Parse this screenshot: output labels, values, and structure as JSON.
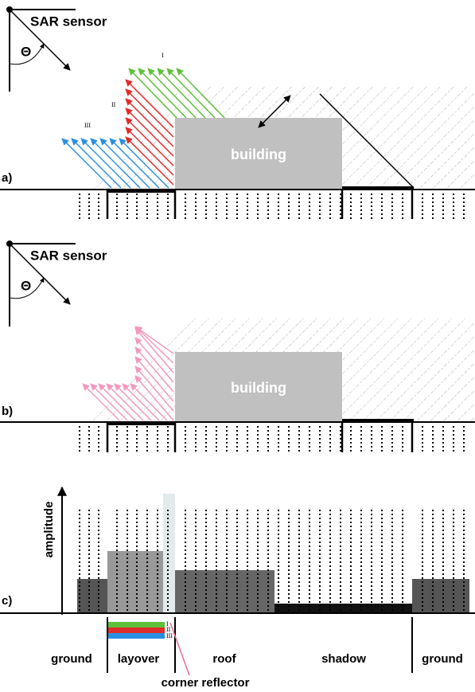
{
  "panel_a": {
    "label": "a)",
    "sensor": "SAR sensor",
    "angle": "Θ",
    "ray_labels": [
      "I",
      "II",
      "III"
    ],
    "building": "building"
  },
  "panel_b": {
    "label": "b)",
    "sensor": "SAR sensor",
    "angle": "Θ",
    "building": "building"
  },
  "panel_c": {
    "label": "c)",
    "y_axis": "amplitude",
    "bar_labels": [
      "I",
      "II",
      "III"
    ],
    "regions": [
      "ground",
      "layover",
      "roof",
      "shadow",
      "ground"
    ],
    "annotation": "corner reflector"
  }
}
